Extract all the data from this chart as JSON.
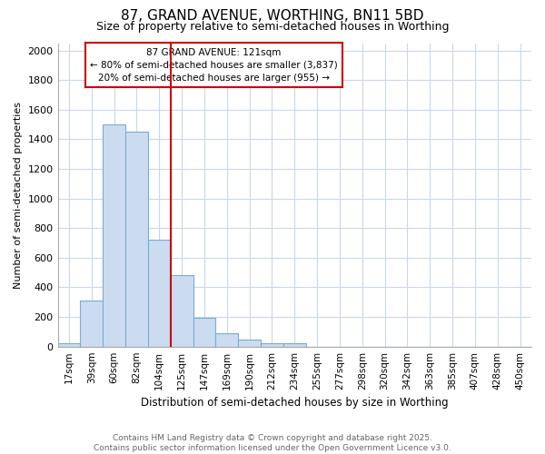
{
  "title1": "87, GRAND AVENUE, WORTHING, BN11 5BD",
  "title2": "Size of property relative to semi-detached houses in Worthing",
  "xlabel": "Distribution of semi-detached houses by size in Worthing",
  "ylabel": "Number of semi-detached properties",
  "bin_labels": [
    "17sqm",
    "39sqm",
    "60sqm",
    "82sqm",
    "104sqm",
    "125sqm",
    "147sqm",
    "169sqm",
    "190sqm",
    "212sqm",
    "234sqm",
    "255sqm",
    "277sqm",
    "298sqm",
    "320sqm",
    "342sqm",
    "363sqm",
    "385sqm",
    "407sqm",
    "428sqm",
    "450sqm"
  ],
  "bar_heights": [
    20,
    310,
    1500,
    1450,
    720,
    480,
    195,
    90,
    50,
    20,
    20,
    0,
    0,
    0,
    0,
    0,
    0,
    0,
    0,
    0,
    0
  ],
  "bar_color": "#ccdcf0",
  "bar_edge_color": "#7baad4",
  "vline_x_idx": 5,
  "vline_color": "#cc0000",
  "annotation_title": "87 GRAND AVENUE: 121sqm",
  "annotation_line1": "← 80% of semi-detached houses are smaller (3,837)",
  "annotation_line2": "20% of semi-detached houses are larger (955) →",
  "annotation_box_color": "#cc0000",
  "ylim": [
    0,
    2050
  ],
  "yticks": [
    0,
    200,
    400,
    600,
    800,
    1000,
    1200,
    1400,
    1600,
    1800,
    2000
  ],
  "footer1": "Contains HM Land Registry data © Crown copyright and database right 2025.",
  "footer2": "Contains public sector information licensed under the Open Government Licence v3.0.",
  "bg_color": "#ffffff",
  "plot_bg_color": "#ffffff",
  "grid_color": "#c8d8ec"
}
